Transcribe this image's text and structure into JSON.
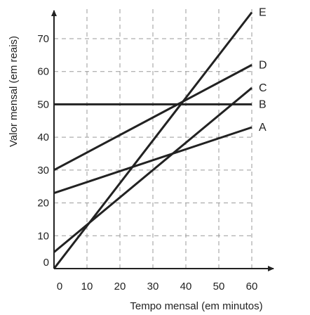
{
  "chart_data": {
    "type": "line",
    "xlabel": "Tempo mensal (em minutos)",
    "ylabel": "Valor mensal (em reais)",
    "x_ticks": [
      0,
      10,
      20,
      30,
      40,
      50,
      60
    ],
    "y_ticks": [
      0,
      10,
      20,
      30,
      40,
      50,
      60,
      70
    ],
    "xlim": [
      0,
      60
    ],
    "ylim": [
      0,
      70
    ],
    "grid": true,
    "series": [
      {
        "name": "A",
        "x": [
          0,
          60
        ],
        "y": [
          23,
          43
        ]
      },
      {
        "name": "B",
        "x": [
          0,
          60
        ],
        "y": [
          50,
          50
        ]
      },
      {
        "name": "C",
        "x": [
          0,
          60
        ],
        "y": [
          5,
          55
        ]
      },
      {
        "name": "D",
        "x": [
          0,
          60
        ],
        "y": [
          30,
          62
        ]
      },
      {
        "name": "E",
        "x": [
          0,
          60
        ],
        "y": [
          0,
          78
        ]
      }
    ]
  }
}
